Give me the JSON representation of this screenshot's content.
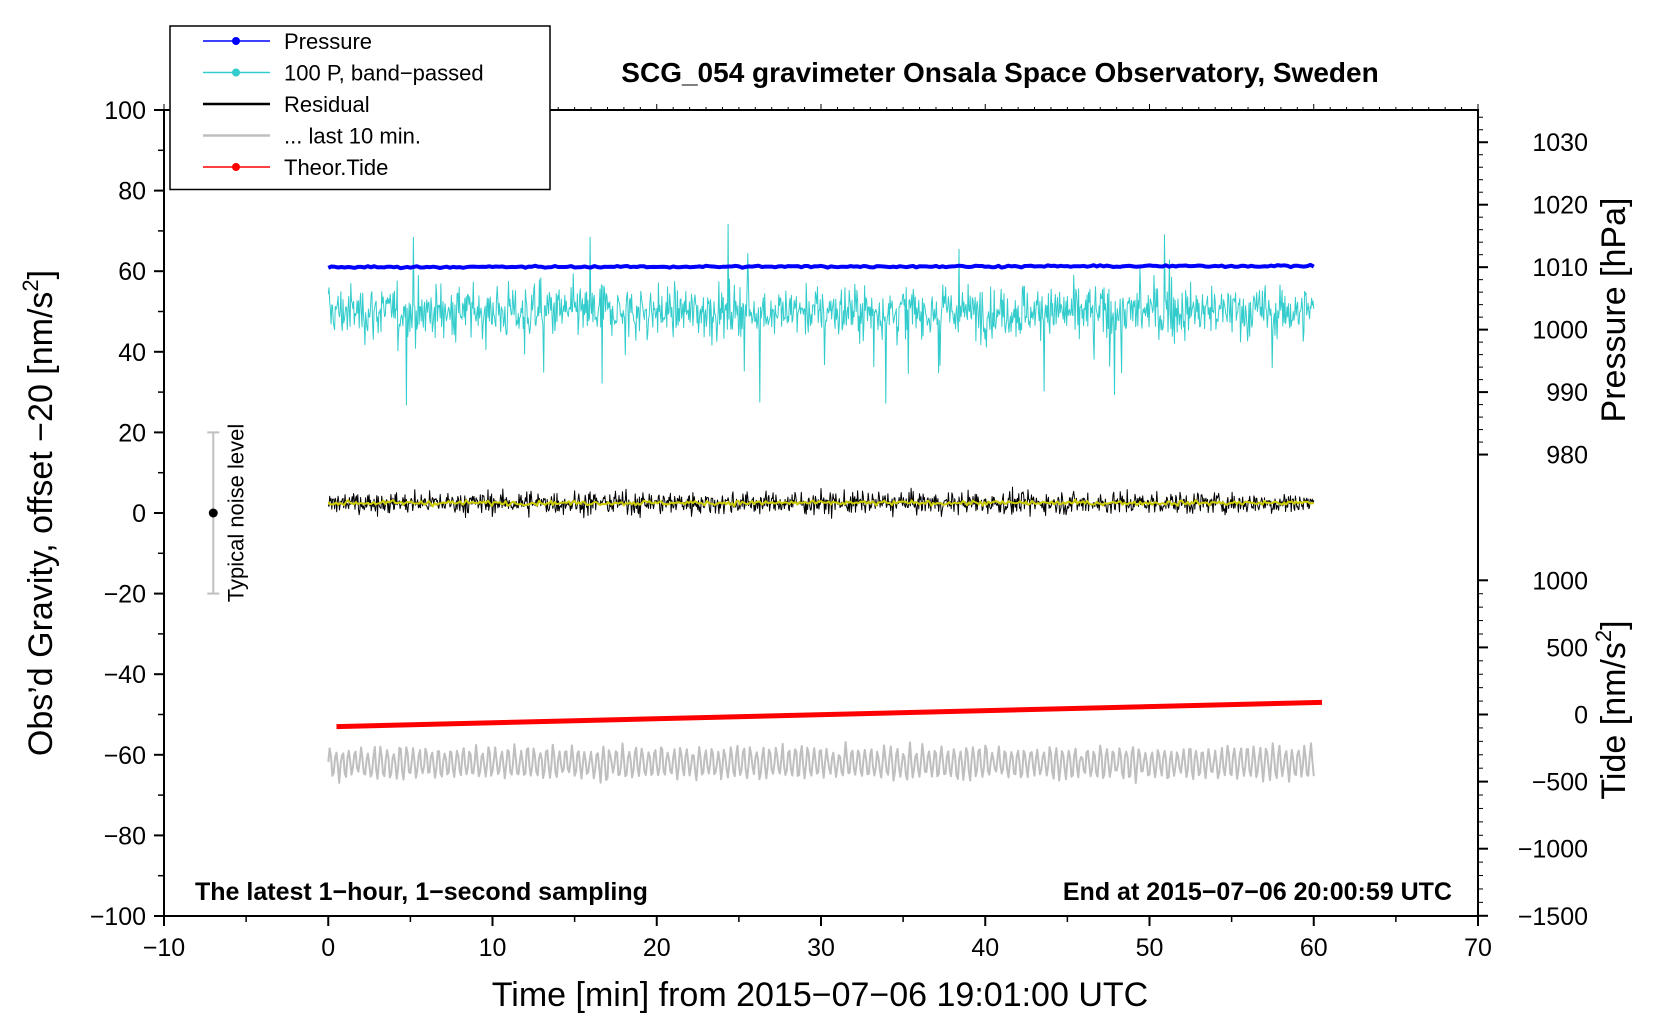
{
  "chart_data": {
    "type": "line",
    "title": "SCG_054 gravimeter Onsala Space Observatory, Sweden",
    "subtitle_left": "The latest 1−hour, 1−second sampling",
    "subtitle_right": "End at 2015−07−06 20:00:59 UTC",
    "xlabel": "Time [min] from 2015−07−06 19:01:00 UTC",
    "ylabel_left": "Obs’d Gravity, offset −20 [nm/s",
    "ylabel_left_sup": "2",
    "ylabel_left_end": "]",
    "ylabel_right_pressure": "Pressure [hPa]",
    "ylabel_right_tide": "Tide [nm/s",
    "ylabel_right_tide_sup": "2",
    "ylabel_right_tide_end": "]",
    "xlim": [
      -10,
      70
    ],
    "ylim": [
      -100,
      100
    ],
    "x_ticks": [
      -10,
      0,
      10,
      20,
      30,
      40,
      50,
      60,
      70
    ],
    "x_tick_labels": [
      "−10",
      "0",
      "10",
      "20",
      "30",
      "40",
      "50",
      "60",
      "70"
    ],
    "y_ticks": [
      -100,
      -80,
      -60,
      -40,
      -20,
      0,
      20,
      40,
      60,
      80,
      100
    ],
    "y_tick_labels": [
      "−100",
      "−80",
      "−60",
      "−40",
      "−20",
      "0",
      "20",
      "40",
      "60",
      "80",
      "100"
    ],
    "pressure_axis": {
      "ticks": [
        980,
        990,
        1000,
        1010,
        1020,
        1030
      ],
      "tick_labels": [
        "980",
        "990",
        "1000",
        "1010",
        "1020",
        "1030"
      ],
      "calib": {
        "value_a": 1010,
        "grav_a": 61,
        "value_b": 1030,
        "grav_b": 92
      }
    },
    "tide_axis": {
      "ticks": [
        -1500,
        -1000,
        -500,
        0,
        500,
        1000
      ],
      "tick_labels": [
        "−1500",
        "−1000",
        "−500",
        "0",
        "500",
        "1000"
      ],
      "calib": {
        "value_a": 0,
        "grav_a": -50,
        "value_b": 1000,
        "grav_b": -16.7
      }
    },
    "noise_bar": {
      "x": -7,
      "y": 0,
      "low": -20,
      "high": 20,
      "label": "Typical noise level"
    },
    "legend": {
      "position": "top-left",
      "entries": [
        {
          "label": "Pressure",
          "color": "#0000ff",
          "marker": true
        },
        {
          "label": "100 P, band−passed",
          "color": "#33cccc",
          "marker": true
        },
        {
          "label": "Residual",
          "color": "#000000",
          "marker": false
        },
        {
          "label": "... last 10 min.",
          "color": "#bfbfbf",
          "marker": false
        },
        {
          "label": "Theor.Tide",
          "color": "#ff0000",
          "marker": true
        }
      ]
    },
    "series": [
      {
        "name": "Pressure",
        "color": "#0000ff",
        "kind": "flat",
        "x_start": 0,
        "x_end": 60,
        "y_start": 61.0,
        "y_end": 61.3,
        "noise": 0.2
      },
      {
        "name": "100 P, band−passed",
        "color": "#33cccc",
        "kind": "noisy",
        "x_start": 0,
        "x_end": 60,
        "mean": 50,
        "noise": 5.5
      },
      {
        "name": "Residual",
        "color": "#000000",
        "kind": "noisy",
        "x_start": 0,
        "x_end": 60,
        "mean": 2.5,
        "noise": 2.3
      },
      {
        "name": "Residual (smoothed)",
        "color": "#cccc00",
        "kind": "noisy",
        "x_start": 0,
        "x_end": 60,
        "mean": 2.5,
        "noise": 0.5
      },
      {
        "name": "Theor.Tide",
        "color": "#ff0000",
        "kind": "trend",
        "x_start": 0.5,
        "x_end": 60.5,
        "y_start": -53,
        "y_end": -47
      },
      {
        "name": "... last 10 min.",
        "color": "#bfbfbf",
        "kind": "wave",
        "x_start": 0,
        "x_end": 60,
        "mean": -62,
        "amplitude": 3.5
      }
    ]
  }
}
